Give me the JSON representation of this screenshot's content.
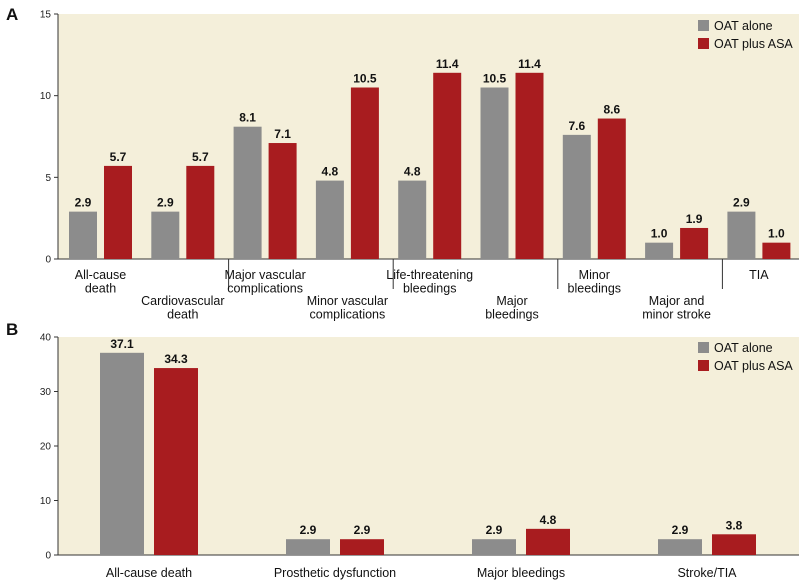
{
  "colors": {
    "plot_background": "#f4efda",
    "oat_alone": "#8c8c8c",
    "oat_plus_asa": "#a81c1f",
    "axis": "#333333"
  },
  "chart_data": [
    {
      "panel": "A",
      "type": "bar",
      "ylim": [
        0,
        15
      ],
      "yticks": [
        0,
        5,
        10,
        15
      ],
      "grid": false,
      "legend_position": "top-right",
      "categories": [
        [
          "All-cause",
          "death"
        ],
        [
          "Cardiovascular",
          "death"
        ],
        [
          "Major vascular",
          "complications"
        ],
        [
          "Minor vascular",
          "complications"
        ],
        [
          "Life-threatening",
          "bleedings"
        ],
        [
          "Major",
          "bleedings"
        ],
        [
          "Minor",
          "bleedings"
        ],
        [
          "Major and",
          "minor stroke"
        ],
        [
          "TIA"
        ]
      ],
      "series": [
        {
          "name": "OAT alone",
          "values": [
            2.9,
            2.9,
            8.1,
            4.8,
            4.8,
            10.5,
            7.6,
            1.0,
            2.9
          ],
          "labels": [
            "2.9",
            "2.9",
            "8.1",
            "4.8",
            "4.8",
            "10.5",
            "7.6",
            "1.0",
            "2.9"
          ]
        },
        {
          "name": "OAT plus ASA",
          "values": [
            5.7,
            5.7,
            7.1,
            10.5,
            11.4,
            11.4,
            8.6,
            1.9,
            1.0
          ],
          "labels": [
            "5.7",
            "5.7",
            "7.1",
            "10.5",
            "11.4",
            "11.4",
            "8.6",
            "1.9",
            "1.0"
          ]
        }
      ]
    },
    {
      "panel": "B",
      "type": "bar",
      "ylim": [
        0,
        40
      ],
      "yticks": [
        0,
        10,
        20,
        30,
        40
      ],
      "grid": false,
      "legend_position": "top-right",
      "categories": [
        [
          "All-cause death"
        ],
        [
          "Prosthetic dysfunction"
        ],
        [
          "Major bleedings"
        ],
        [
          "Stroke/TIA"
        ]
      ],
      "series": [
        {
          "name": "OAT alone",
          "values": [
            37.1,
            2.9,
            2.9,
            2.9
          ],
          "labels": [
            "37.1",
            "2.9",
            "2.9",
            "2.9"
          ]
        },
        {
          "name": "OAT plus ASA",
          "values": [
            34.3,
            2.9,
            4.8,
            3.8
          ],
          "labels": [
            "34.3",
            "2.9",
            "4.8",
            "3.8"
          ]
        }
      ]
    }
  ]
}
